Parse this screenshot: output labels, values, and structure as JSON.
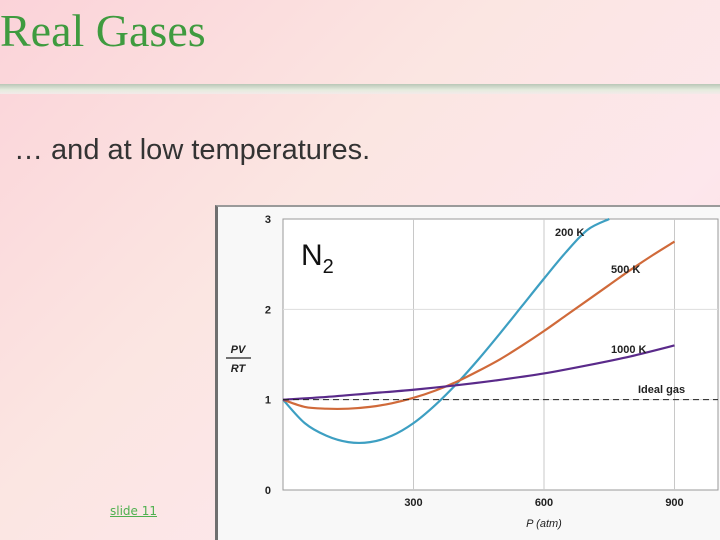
{
  "slide": {
    "title": "Real Gases",
    "subtitle": "… and at low temperatures.",
    "slide_number": "slide 11"
  },
  "chart_data": {
    "type": "line",
    "annotation": "N₂",
    "annotation_base": "N",
    "annotation_sub": "2",
    "xlabel": "P (atm)",
    "ylabel_num": "PV",
    "ylabel_den": "RT",
    "xlim": [
      0,
      1000
    ],
    "ylim": [
      0,
      3
    ],
    "x_ticks": [
      300,
      600,
      900
    ],
    "y_ticks": [
      0,
      1,
      2,
      3
    ],
    "grid": true,
    "series": [
      {
        "name": "200 K",
        "color": "#3d9fc2",
        "x": [
          0,
          50,
          100,
          150,
          200,
          250,
          300,
          350,
          400,
          450,
          500,
          550,
          600,
          650,
          700,
          750
        ],
        "y": [
          1.0,
          0.74,
          0.6,
          0.53,
          0.53,
          0.6,
          0.74,
          0.94,
          1.18,
          1.45,
          1.74,
          2.04,
          2.34,
          2.63,
          2.88,
          3.0
        ]
      },
      {
        "name": "500 K",
        "color": "#d06a3a",
        "x": [
          0,
          50,
          100,
          150,
          200,
          250,
          300,
          350,
          400,
          450,
          500,
          550,
          600,
          650,
          700,
          750,
          800,
          850,
          900
        ],
        "y": [
          1.0,
          0.92,
          0.9,
          0.9,
          0.92,
          0.96,
          1.02,
          1.1,
          1.2,
          1.32,
          1.45,
          1.6,
          1.76,
          1.93,
          2.1,
          2.27,
          2.44,
          2.6,
          2.75
        ]
      },
      {
        "name": "1000 K",
        "color": "#5a2a8a",
        "x": [
          0,
          100,
          200,
          300,
          400,
          500,
          600,
          700,
          800,
          900
        ],
        "y": [
          1.0,
          1.03,
          1.07,
          1.11,
          1.16,
          1.22,
          1.29,
          1.38,
          1.48,
          1.6
        ]
      },
      {
        "name": "Ideal gas",
        "color": "#222222",
        "dashed": true,
        "x": [
          0,
          1000
        ],
        "y": [
          1.0,
          1.0
        ]
      }
    ]
  }
}
